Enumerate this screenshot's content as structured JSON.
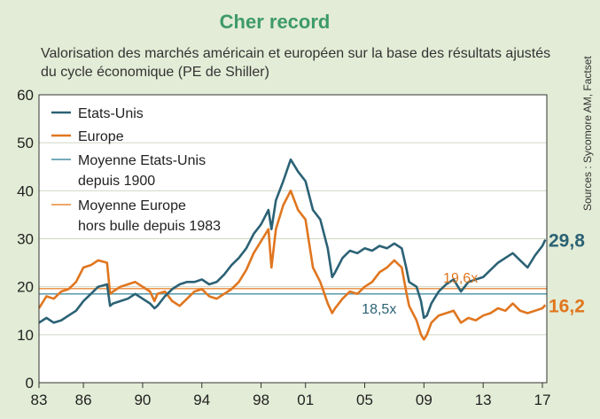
{
  "title": "Cher record",
  "subtitle": "Valorisation des marchés américain et européen sur la base des résultats ajustés du cycle économique (PE de Shiller)",
  "source": "Sources : Sycomore AM, Factset",
  "colors": {
    "us": "#2b6275",
    "europe": "#e0761f",
    "avg_us": "#4a8fa3",
    "avg_europe": "#ea8a3a",
    "title": "#3d9a6a",
    "background": "#e3ecd6"
  },
  "chart_data": {
    "type": "line",
    "title": "Cher record",
    "ylim": [
      0,
      60
    ],
    "yticks": [
      0,
      10,
      20,
      30,
      40,
      50,
      60
    ],
    "xlim": [
      1983,
      2017.3
    ],
    "xtick_labels": [
      "83",
      "86",
      "90",
      "94",
      "98",
      "01",
      "05",
      "09",
      "13",
      "17"
    ],
    "xtick_years": [
      1983,
      1986,
      1990,
      1994,
      1998,
      2001,
      2005,
      2009,
      2013,
      2017
    ],
    "legend_position": "top-left",
    "series": [
      {
        "name": "Etats-Unis",
        "x": [
          1983.0,
          1983.5,
          1984.0,
          1984.5,
          1985.0,
          1985.5,
          1986.0,
          1986.5,
          1987.0,
          1987.6,
          1987.8,
          1988.0,
          1988.5,
          1989.0,
          1989.5,
          1990.0,
          1990.5,
          1990.8,
          1991.0,
          1991.5,
          1992.0,
          1992.5,
          1993.0,
          1993.5,
          1994.0,
          1994.5,
          1995.0,
          1995.5,
          1996.0,
          1996.5,
          1997.0,
          1997.5,
          1998.0,
          1998.5,
          1998.7,
          1999.0,
          1999.5,
          2000.0,
          2000.5,
          2001.0,
          2001.5,
          2002.0,
          2002.5,
          2002.8,
          2003.0,
          2003.5,
          2004.0,
          2004.5,
          2005.0,
          2005.5,
          2006.0,
          2006.5,
          2007.0,
          2007.5,
          2007.8,
          2008.0,
          2008.5,
          2008.8,
          2009.0,
          2009.2,
          2009.5,
          2010.0,
          2010.5,
          2011.0,
          2011.5,
          2012.0,
          2012.5,
          2013.0,
          2013.5,
          2014.0,
          2014.5,
          2015.0,
          2015.5,
          2016.0,
          2016.5,
          2017.0,
          2017.2
        ],
        "values": [
          12.5,
          13.5,
          12.5,
          13.0,
          14.0,
          15.0,
          17.0,
          18.5,
          20.0,
          20.5,
          16.0,
          16.5,
          17.0,
          17.5,
          18.5,
          17.5,
          16.5,
          15.5,
          16.0,
          18.0,
          19.5,
          20.5,
          21.0,
          21.0,
          21.5,
          20.5,
          21.0,
          22.5,
          24.5,
          26.0,
          28.0,
          31.0,
          33.0,
          36.0,
          32.0,
          38.0,
          42.0,
          46.5,
          44.0,
          42.0,
          36.0,
          34.0,
          28.0,
          22.0,
          23.0,
          26.0,
          27.5,
          27.0,
          28.0,
          27.5,
          28.5,
          28.0,
          29.0,
          28.0,
          24.0,
          21.0,
          20.0,
          17.0,
          13.5,
          14.0,
          16.5,
          19.0,
          20.5,
          21.5,
          19.0,
          21.0,
          21.5,
          22.0,
          23.5,
          25.0,
          26.0,
          27.0,
          25.5,
          24.0,
          26.5,
          28.5,
          29.8
        ]
      },
      {
        "name": "Europe",
        "x": [
          1983.0,
          1983.5,
          1984.0,
          1984.5,
          1985.0,
          1985.5,
          1986.0,
          1986.5,
          1987.0,
          1987.6,
          1987.8,
          1988.0,
          1988.5,
          1989.0,
          1989.5,
          1990.0,
          1990.5,
          1990.8,
          1991.0,
          1991.5,
          1992.0,
          1992.5,
          1993.0,
          1993.5,
          1994.0,
          1994.5,
          1995.0,
          1995.5,
          1996.0,
          1996.5,
          1997.0,
          1997.5,
          1998.0,
          1998.5,
          1998.7,
          1999.0,
          1999.5,
          2000.0,
          2000.5,
          2001.0,
          2001.5,
          2002.0,
          2002.5,
          2002.8,
          2003.0,
          2003.5,
          2004.0,
          2004.5,
          2005.0,
          2005.5,
          2006.0,
          2006.5,
          2007.0,
          2007.5,
          2007.8,
          2008.0,
          2008.5,
          2008.8,
          2009.0,
          2009.2,
          2009.5,
          2010.0,
          2010.5,
          2011.0,
          2011.5,
          2012.0,
          2012.5,
          2013.0,
          2013.5,
          2014.0,
          2014.5,
          2015.0,
          2015.5,
          2016.0,
          2016.5,
          2017.0,
          2017.2
        ],
        "values": [
          15.5,
          18.0,
          17.5,
          19.0,
          19.5,
          21.0,
          24.0,
          24.5,
          25.5,
          25.0,
          18.5,
          19.0,
          20.0,
          20.5,
          21.0,
          20.0,
          19.0,
          17.0,
          18.5,
          19.0,
          17.0,
          16.0,
          17.5,
          19.0,
          19.5,
          18.0,
          17.5,
          18.5,
          19.5,
          21.0,
          23.5,
          27.0,
          29.5,
          32.0,
          24.0,
          32.0,
          37.0,
          40.0,
          36.0,
          34.0,
          24.0,
          21.0,
          16.5,
          14.5,
          15.5,
          17.5,
          19.0,
          18.5,
          20.0,
          21.0,
          23.0,
          24.0,
          25.5,
          24.0,
          19.0,
          16.0,
          13.0,
          10.0,
          9.0,
          10.0,
          12.5,
          14.0,
          14.5,
          15.0,
          12.5,
          13.5,
          13.0,
          14.0,
          14.5,
          15.5,
          15.0,
          16.5,
          15.0,
          14.5,
          15.0,
          15.5,
          16.2
        ]
      },
      {
        "name": "Moyenne Etats-Unis depuis 1900",
        "value": 18.5
      },
      {
        "name": "Moyenne Europe hors bulle depuis 1983",
        "value": 19.6
      }
    ],
    "legend": [
      "Etats-Unis",
      "Europe",
      "Moyenne Etats-Unis",
      "depuis 1900",
      "Moyenne Europe",
      "hors bulle depuis 1983"
    ],
    "annotations": {
      "avg_europe": "19,6x",
      "avg_us": "18,5x",
      "last_us": "29,8",
      "last_europe": "16,2"
    }
  }
}
